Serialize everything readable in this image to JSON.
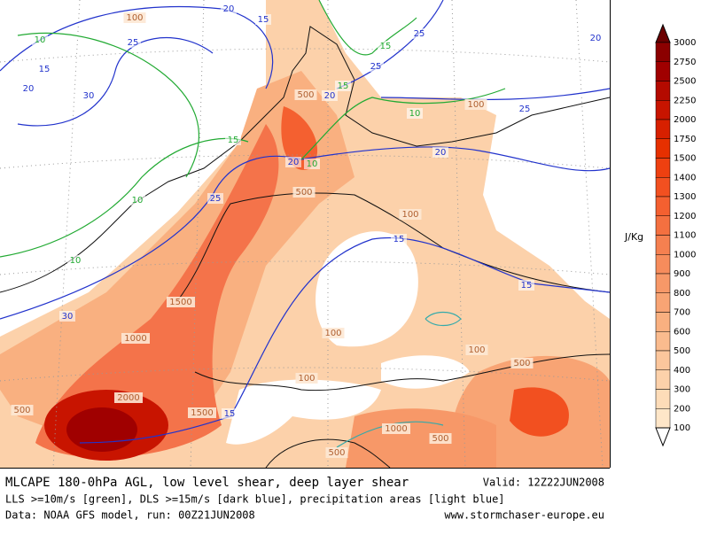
{
  "map": {
    "labels": [
      "100",
      "20",
      "15",
      "25",
      "10",
      "15",
      "20",
      "30",
      "15",
      "25",
      "25",
      "20",
      "15",
      "500",
      "20",
      "10",
      "100",
      "25",
      "15",
      "20",
      "20",
      "10",
      "10",
      "25",
      "500",
      "100",
      "10",
      "15",
      "15",
      "1500",
      "30",
      "1000",
      "100",
      "100",
      "500",
      "100",
      "2000",
      "500",
      "1500",
      "15",
      "1000",
      "500",
      "500"
    ],
    "label_kinds": [
      "cape",
      "dls",
      "dls",
      "dls",
      "lls",
      "dls",
      "dls",
      "dls",
      "lls",
      "dls",
      "dls",
      "dls",
      "lls",
      "cape",
      "dls",
      "lls",
      "cape",
      "dls",
      "lls",
      "dls",
      "dls",
      "lls",
      "lls",
      "dls",
      "cape",
      "cape",
      "lls",
      "dls",
      "dls",
      "cape",
      "dls",
      "cape",
      "cape",
      "cape",
      "cape",
      "cape",
      "cape",
      "cape",
      "cape",
      "dls",
      "cape",
      "cape",
      "cape"
    ]
  },
  "legend": {
    "unit": "J/Kg",
    "levels": [
      "3000",
      "2750",
      "2500",
      "2250",
      "2000",
      "1750",
      "1500",
      "1400",
      "1300",
      "1200",
      "1100",
      "1000",
      "900",
      "800",
      "700",
      "600",
      "500",
      "400",
      "300",
      "200",
      "100"
    ],
    "colors": [
      "#6b0000",
      "#8b0000",
      "#a00000",
      "#b40a00",
      "#c81400",
      "#d72000",
      "#e63000",
      "#ee4010",
      "#f25020",
      "#f46030",
      "#f47040",
      "#f58050",
      "#f68c5c",
      "#f79868",
      "#f8a474",
      "#f9b080",
      "#fabb8e",
      "#fbc69c",
      "#fcd1aa",
      "#fddcb8",
      "#fee6c8",
      "#ffffff"
    ]
  },
  "caption": {
    "title": "MLCAPE 180-0hPa AGL, low level shear, deep layer shear",
    "valid": "Valid: 12Z22JUN2008",
    "line2": "LLS >=10m/s [green], DLS >=15m/s [dark blue], precipitation areas [light blue]",
    "line3": "Data: NOAA GFS model, run: 00Z21JUN2008",
    "site": "www.stormchaser-europe.eu"
  }
}
